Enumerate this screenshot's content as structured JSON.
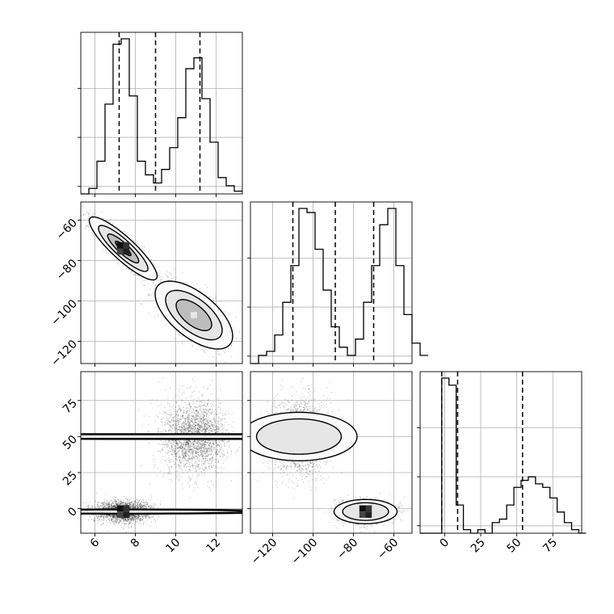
{
  "chart_data": {
    "type": "corner",
    "title": "",
    "grid": true,
    "parameters": [
      {
        "label": "",
        "range": [
          5.3,
          13.3
        ],
        "ticks": [
          6,
          8,
          10,
          12
        ],
        "tick_labels": [
          "6",
          "8",
          "10",
          "12"
        ],
        "quantiles": [
          7.2,
          9.0,
          11.2
        ]
      },
      {
        "label": "",
        "range": [
          -131,
          -51
        ],
        "ticks": [
          -120,
          -100,
          -80,
          -60
        ],
        "tick_labels": [
          "−120",
          "−100",
          "−80",
          "−60"
        ],
        "quantiles": [
          -110,
          -89,
          -70
        ]
      },
      {
        "label": "",
        "range": [
          -17,
          95
        ],
        "ticks": [
          0,
          25,
          50,
          75
        ],
        "tick_labels": [
          "0",
          "25",
          "50",
          "75"
        ],
        "quantiles": [
          -2,
          9,
          54
        ]
      }
    ],
    "histograms": [
      {
        "param": 0,
        "bin_width": 0.4,
        "bin_start": 5.3,
        "counts": [
          0,
          2,
          12,
          33,
          55,
          57,
          36,
          12,
          7,
          4,
          9,
          17,
          28,
          46,
          50,
          35,
          19,
          6,
          3,
          1
        ]
      },
      {
        "param": 1,
        "bin_width": 4,
        "bin_start": -131,
        "counts": [
          0,
          2,
          3,
          7,
          15,
          24,
          38,
          37,
          28,
          18,
          9,
          4,
          2,
          6,
          15,
          24,
          34,
          38,
          24,
          12,
          5,
          2
        ]
      },
      {
        "param": 2,
        "bin_width": 5,
        "bin_start": -17,
        "counts": [
          0,
          0,
          0,
          44,
          42,
          8,
          1,
          0,
          1,
          0,
          3,
          4,
          8,
          13,
          15,
          16,
          14,
          13,
          10,
          6,
          3,
          1,
          0
        ]
      }
    ],
    "clusters": [
      {
        "weight": 0.5,
        "mean": [
          7.4,
          -74,
          -2
        ],
        "sd": [
          0.7,
          6.5,
          3.5
        ],
        "corr01": -0.88
      },
      {
        "weight": 0.5,
        "mean": [
          10.9,
          -107,
          50
        ],
        "sd": [
          0.8,
          7,
          12
        ],
        "corr01": -0.62
      }
    ]
  }
}
